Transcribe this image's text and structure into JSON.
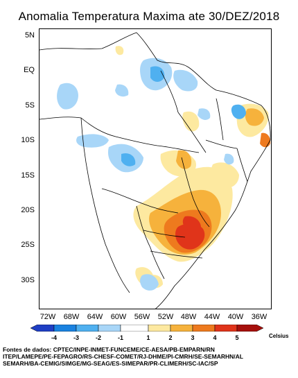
{
  "title": "Anomalia Temperatura Maxima ate 30/DEZ/2018",
  "latitude_labels": [
    "5N",
    "EQ",
    "5S",
    "10S",
    "15S",
    "20S",
    "25S",
    "30S"
  ],
  "longitude_labels": [
    "72W",
    "68W",
    "64W",
    "60W",
    "56W",
    "52W",
    "48W",
    "44W",
    "40W",
    "36W"
  ],
  "legend": {
    "tick_labels": [
      "-4",
      "-3",
      "-2",
      "-1",
      "1",
      "2",
      "3",
      "4",
      "5"
    ],
    "unit": "Celsius",
    "colors": [
      "#1f3fc4",
      "#1a82e0",
      "#4fb0f0",
      "#a8d6f8",
      "#ffffff",
      "#fde9a0",
      "#f6b23c",
      "#ee7a1e",
      "#e0341a",
      "#a6100c"
    ]
  },
  "sources": "Fontes de dados: CPTEC/INPE-INMET-FUNCEME/CE-AESA/PB-EMPARN/RN\nITEP/LAMEPE/PE-FEPAGRO/RS-CHESF-COMET/RJ-DHME/PI-CMRH/SE-SEMARHN/AL\nSEMARH/BA-CEMIG/SIMGE/MG-SEAG/ES-SIMEPAR/PR-CLIMERH/SC-IAC/SP"
}
